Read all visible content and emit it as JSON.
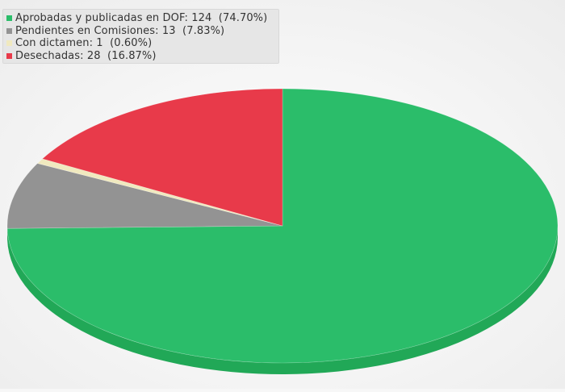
{
  "chart_data": {
    "type": "pie",
    "title": "",
    "slices": [
      {
        "label": "Aprobadas y publicadas en DOF",
        "value": 124,
        "percent": "74.70%",
        "color": "#2bbd6a",
        "side_color": "#21a857"
      },
      {
        "label": "Pendientes en Comisiones",
        "value": 13,
        "percent": "7.83%",
        "color": "#939393",
        "side_color": "#7d7d7d"
      },
      {
        "label": "Con dictamen",
        "value": 1,
        "percent": "0.60%",
        "color": "#f0e9bf",
        "side_color": "#d8d1a6"
      },
      {
        "label": "Desechadas",
        "value": 28,
        "percent": "16.87%",
        "color": "#e83a4a",
        "side_color": "#c92f3d"
      }
    ],
    "legend": [
      "Aprobadas y publicadas en DOF: 124  (74.70%)",
      "Pendientes en Comisiones: 13  (7.83%)",
      "Con dictamen: 1  (0.60%)",
      "Desechadas: 28  (16.87%)"
    ],
    "legend_position": "top-left",
    "style": "3d"
  }
}
